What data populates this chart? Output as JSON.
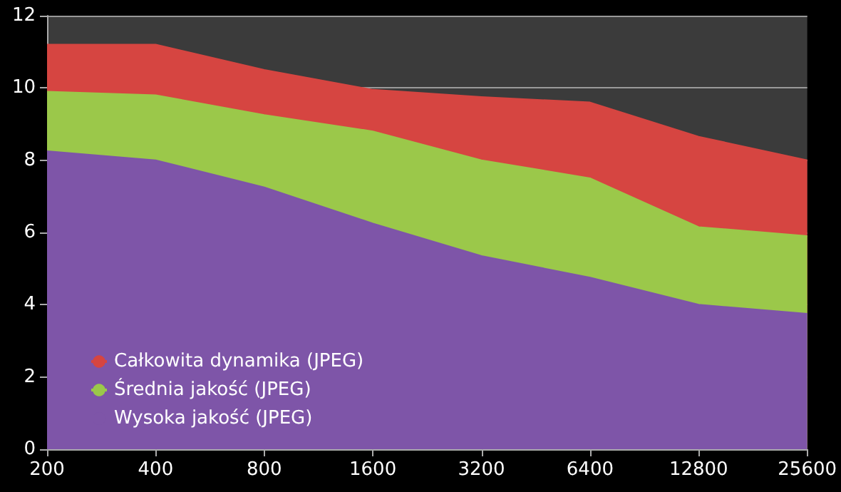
{
  "chart_data": {
    "type": "area",
    "categories": [
      "200",
      "400",
      "800",
      "1600",
      "3200",
      "6400",
      "12800",
      "25600"
    ],
    "series": [
      {
        "name": "Całkowita dynamika (JPEG)",
        "color": "#d64541",
        "values": [
          11.2,
          11.2,
          10.5,
          9.95,
          9.75,
          9.6,
          8.65,
          8.0
        ]
      },
      {
        "name": "Średnia jakość (JPEG)",
        "color": "#9bc84a",
        "values": [
          9.9,
          9.8,
          9.25,
          8.8,
          8.0,
          7.5,
          6.15,
          5.9
        ]
      },
      {
        "name": "Wysoka jakość (JPEG)",
        "color": "#7e55a8",
        "values": [
          8.25,
          8.0,
          7.25,
          6.25,
          5.35,
          4.75,
          4.0,
          3.75
        ]
      }
    ],
    "ylim": [
      0,
      12
    ],
    "yticks": [
      0,
      2,
      4,
      6,
      8,
      10,
      12
    ],
    "grid": "y",
    "legend": "bottom left"
  }
}
